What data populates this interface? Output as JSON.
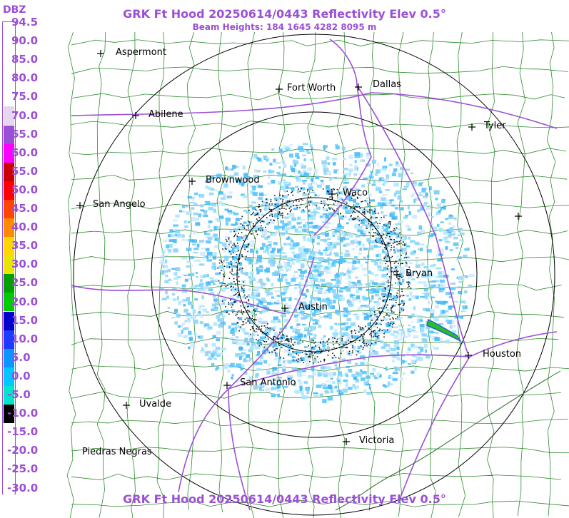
{
  "title_top": "GRK Ft Hood 20250614/0443 Reflectivity Elev 0.5°",
  "subtitle": "Beam Heights: 184 1645 4282 8095 m",
  "title_bottom": "GRK Ft Hood 20250614/0443 Reflectivity Elev 0.5°",
  "legend": {
    "unit": "DBZ",
    "labels": [
      "94.5",
      "90.0",
      "85.0",
      "80.0",
      "75.0",
      "70.0",
      "65.0",
      "60.0",
      "55.0",
      "50.0",
      "45.0",
      "40.0",
      "35.0",
      "30.0",
      "25.0",
      "20.0",
      "15.0",
      "10.0",
      "5.0",
      "0.0",
      "-5.0",
      "-10.0",
      "-15.0",
      "-20.0",
      "-25.0",
      "-30.0"
    ],
    "colors": [
      "#ffffff",
      "#ffffff",
      "#ffffff",
      "#ffffff",
      "#e6d6ee",
      "#9b4fd6",
      "#ff00ff",
      "#cc0000",
      "#ff0000",
      "#ff4500",
      "#ff8c00",
      "#ffd700",
      "#e6e600",
      "#00a000",
      "#00cc00",
      "#0000cc",
      "#1e3cff",
      "#0a96ff",
      "#00c8ff",
      "#00e5cc",
      "#000000",
      "#ffffff",
      "#ffffff",
      "#ffffff",
      "#ffffff",
      "#ffffff"
    ]
  },
  "cities": [
    {
      "name": "Aspermont"
    },
    {
      "name": "Fort Worth"
    },
    {
      "name": "Dallas"
    },
    {
      "name": "Abilene"
    },
    {
      "name": "Tyler"
    },
    {
      "name": "Brownwood"
    },
    {
      "name": "Waco"
    },
    {
      "name": "San Angelo"
    },
    {
      "name": "Bryan"
    },
    {
      "name": "Austin"
    },
    {
      "name": "Houston"
    },
    {
      "name": "San Antonio"
    },
    {
      "name": "Uvalde"
    },
    {
      "name": "Victoria"
    },
    {
      "name": "Piedras Negras"
    }
  ],
  "colors": {
    "title": "#9b4fd6",
    "county_lines": "#2e8b2e",
    "highways": "#9b4fd6",
    "range_rings": "#000000"
  }
}
